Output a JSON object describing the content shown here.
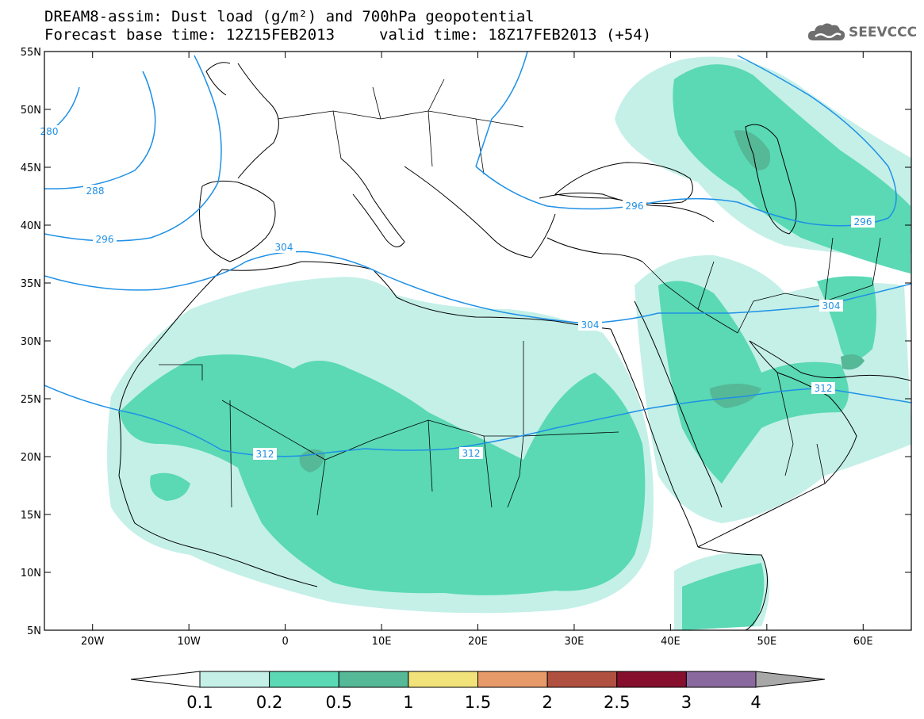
{
  "title": {
    "line1": "DREAM8-assim: Dust load (g/m²) and 700hPa geopotential",
    "line2_left": "Forecast base time: 12Z15FEB2013",
    "line2_right": "valid time: 18Z17FEB2013 (+54)"
  },
  "logo": {
    "text": "SEEVCCC",
    "icon": "cloud-icon"
  },
  "map": {
    "lat_labels": [
      "55N",
      "50N",
      "45N",
      "40N",
      "35N",
      "30N",
      "25N",
      "20N",
      "15N",
      "10N",
      "5N"
    ],
    "lon_labels": [
      "20W",
      "10W",
      "0",
      "10E",
      "20E",
      "30E",
      "40E",
      "50E",
      "60E"
    ],
    "lat_values": [
      55,
      50,
      45,
      40,
      35,
      30,
      25,
      20,
      15,
      10,
      5
    ],
    "lon_values": [
      -20,
      -10,
      0,
      10,
      20,
      30,
      40,
      50,
      60
    ],
    "lon_range": [
      -25,
      65
    ],
    "lat_range": [
      5,
      55
    ],
    "contour_labels": [
      "280",
      "288",
      "296",
      "304",
      "312",
      "312",
      "296",
      "296",
      "304",
      "304",
      "312"
    ],
    "contour_color": "#1e90e6"
  },
  "colorbar": {
    "labels": [
      "0.1",
      "0.2",
      "0.5",
      "1",
      "1.5",
      "2",
      "2.5",
      "3",
      "4"
    ],
    "colors": [
      "#c4f0e8",
      "#5ad9b4",
      "#55b896",
      "#f2e27a",
      "#e69a6a",
      "#b05040",
      "#860f2e",
      "#8a6a9e",
      "#a8a8a8"
    ]
  }
}
